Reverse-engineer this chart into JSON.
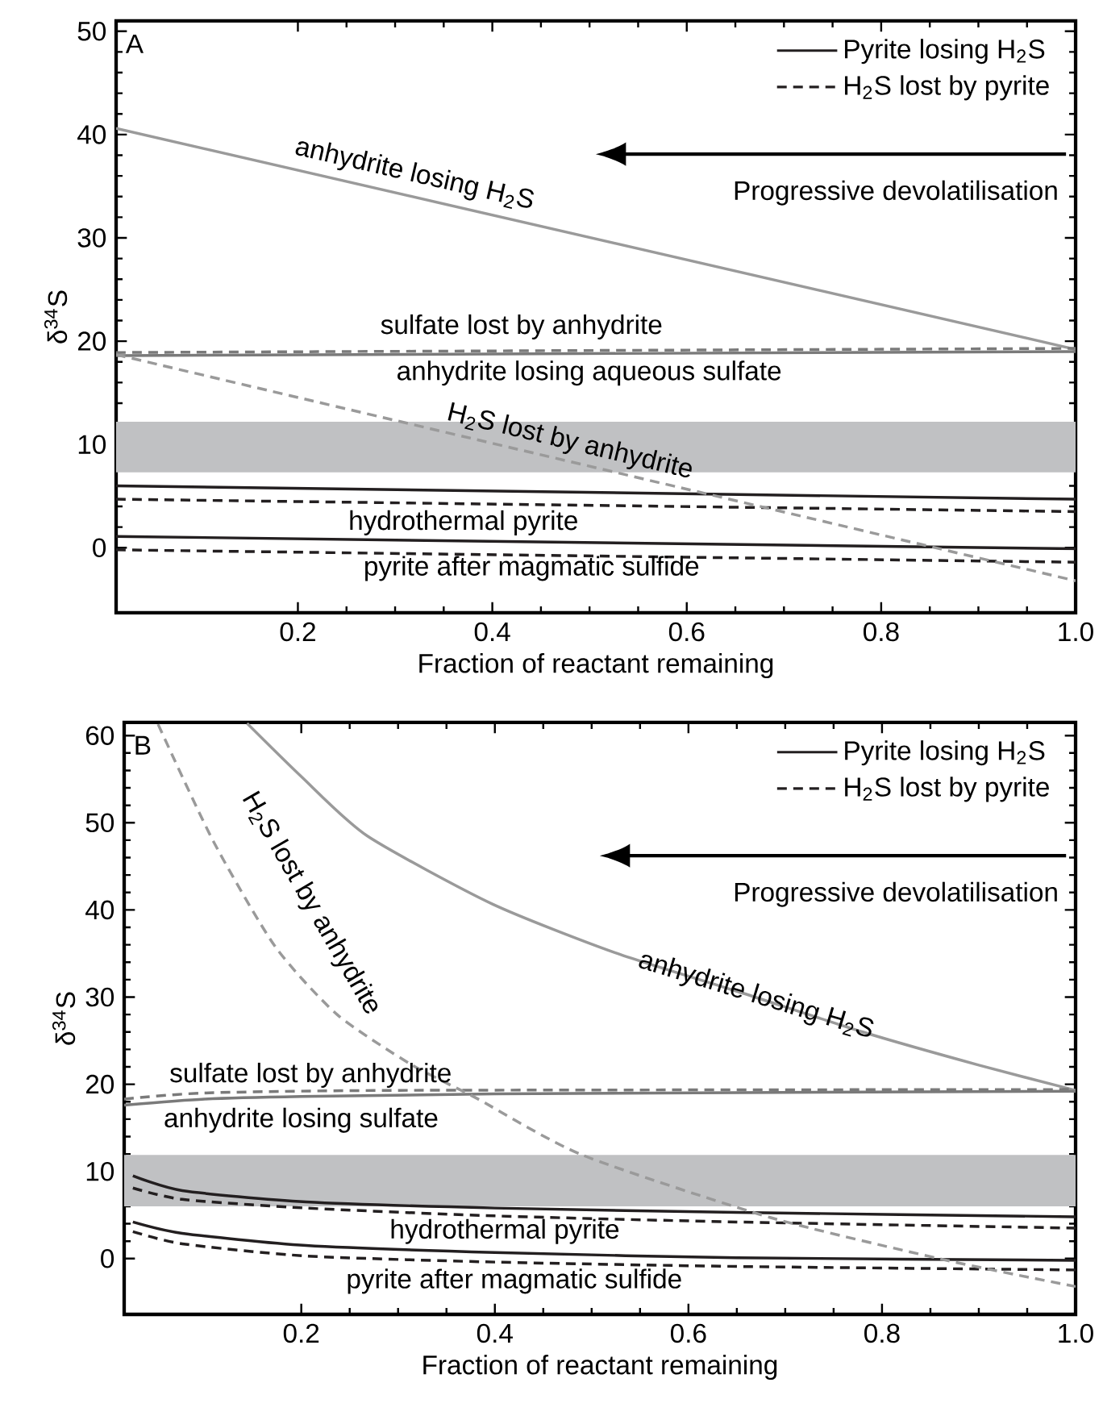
{
  "chart_data": [
    {
      "type": "line",
      "xlabel": "Fraction of reactant remaining",
      "ylabel": "δ$^{34}$S",
      "xlim": [
        0.013,
        1.0
      ],
      "ylim": [
        -6.3,
        51
      ],
      "xticks": [
        0.2,
        0.4,
        0.6,
        0.8,
        {
          "value": 1.0,
          "label": "1.0"
        }
      ],
      "yticks": [
        0,
        10,
        20,
        30,
        40,
        50
      ],
      "legend": "top right",
      "bands": [
        {
          "axis": "y",
          "from": 7.3,
          "to": 12.2,
          "color": "#c0c1c3"
        }
      ],
      "annotations": [
        "A",
        "Progressive devolatilisation",
        "anhydrite losing H$_{2}$S",
        "sulfate lost by anhydrite",
        "anhydrite losing aqueous sulfate",
        "H$_{2}$S lost by anhydrite",
        "hydrothermal pyrite",
        "pyrite after magmatic sulfide"
      ],
      "series": [
        {
          "name": "Pyrite losing H$_{2}$S",
          "color": "#231f20",
          "line_style": "solid",
          "x": [
            0.013,
            1.0
          ],
          "values": [
            6.0,
            4.7
          ]
        },
        {
          "name": "H$_{2}$S lost by pyrite",
          "color": "#231f20",
          "line_style": "dashed",
          "x": [
            0.013,
            1.0
          ],
          "values": [
            4.7,
            3.5
          ]
        },
        {
          "color": "#231f20",
          "line_style": "solid",
          "x": [
            0.013,
            1.0
          ],
          "values": [
            1.1,
            -0.1
          ]
        },
        {
          "color": "#231f20",
          "line_style": "dashed",
          "x": [
            0.013,
            1.0
          ],
          "values": [
            -0.2,
            -1.4
          ]
        },
        {
          "color": "#9a9a9a",
          "line_style": "solid",
          "x": [
            0.013,
            1.0
          ],
          "values": [
            40.6,
            19.2
          ]
        },
        {
          "color": "#7a7a7a",
          "line_style": "dashed",
          "x": [
            0.013,
            1.0
          ],
          "values": [
            18.9,
            19.3
          ]
        },
        {
          "color": "#7a7a7a",
          "line_style": "solid",
          "x": [
            0.013,
            1.0
          ],
          "values": [
            18.6,
            19.0
          ]
        },
        {
          "color": "#9a9a9a",
          "line_style": "dashed",
          "x": [
            0.013,
            1.0
          ],
          "values": [
            18.7,
            -3.2
          ]
        }
      ]
    },
    {
      "type": "line",
      "xlabel": "Fraction of reactant remaining",
      "ylabel": "δ$^{34}$S",
      "xlim": [
        0.017,
        1.0
      ],
      "ylim": [
        -6.4,
        61.5
      ],
      "xticks": [
        0.2,
        0.4,
        0.6,
        0.8,
        {
          "value": 1.0,
          "label": "1.0"
        }
      ],
      "yticks": [
        0,
        10,
        20,
        30,
        40,
        50,
        60
      ],
      "legend": "top right",
      "bands": [
        {
          "axis": "y",
          "from": 6.0,
          "to": 11.9,
          "color": "#c0c1c3"
        }
      ],
      "annotations": [
        "B",
        "Progressive devolatilisation",
        "H$_{2}$S lost by anhydrite",
        "anhydrite losing H$_{2}$S",
        "sulfate lost by anhydrite",
        "anhydrite losing sulfate",
        "hydrothermal pyrite",
        "pyrite after magmatic sulfide"
      ],
      "series": [
        {
          "name": "Pyrite losing H$_{2}$S",
          "color": "#231f20",
          "line_style": "solid",
          "x": [
            0.026,
            0.077,
            0.205,
            0.4,
            0.65,
            1.0
          ],
          "values": [
            9.5,
            7.8,
            6.5,
            5.8,
            5.3,
            4.8
          ]
        },
        {
          "name": "H$_{2}$S lost by pyrite",
          "color": "#231f20",
          "line_style": "dashed",
          "x": [
            0.026,
            0.077,
            0.205,
            0.4,
            0.65,
            1.0
          ],
          "values": [
            8.1,
            6.8,
            5.8,
            4.9,
            4.2,
            3.5
          ]
        },
        {
          "color": "#231f20",
          "line_style": "solid",
          "x": [
            0.026,
            0.077,
            0.205,
            0.4,
            0.65,
            1.0
          ],
          "values": [
            4.2,
            2.9,
            1.5,
            0.7,
            0.1,
            -0.2
          ]
        },
        {
          "color": "#231f20",
          "line_style": "dashed",
          "x": [
            0.026,
            0.077,
            0.205,
            0.4,
            0.65,
            1.0
          ],
          "values": [
            3.1,
            1.7,
            0.3,
            -0.4,
            -0.9,
            -1.3
          ]
        },
        {
          "color": "#9a9a9a",
          "line_style": "solid",
          "x": [
            0.144,
            0.2,
            0.268,
            0.397,
            0.524,
            0.652,
            0.78,
            0.9,
            1.0
          ],
          "values": [
            61.4,
            55.3,
            48.5,
            40.7,
            35.1,
            30.6,
            26.0,
            22.2,
            19.3
          ]
        },
        {
          "color": "#7a7a7a",
          "line_style": "dashed",
          "x": [
            0.017,
            0.1,
            0.3,
            1.0
          ],
          "values": [
            18.3,
            19.0,
            19.3,
            19.4
          ]
        },
        {
          "color": "#7a7a7a",
          "line_style": "solid",
          "x": [
            0.017,
            0.1,
            0.2,
            0.4,
            1.0
          ],
          "values": [
            17.6,
            18.3,
            18.6,
            18.9,
            19.2
          ]
        },
        {
          "color": "#9a9a9a",
          "line_style": "dashed",
          "x": [
            0.052,
            0.109,
            0.173,
            0.237,
            0.313,
            0.381,
            0.49,
            0.685,
            0.867,
            1.0
          ],
          "values": [
            61.3,
            47.9,
            35.8,
            28.0,
            22.3,
            18.4,
            11.9,
            4.7,
            -0.2,
            -3.2
          ]
        }
      ]
    }
  ]
}
